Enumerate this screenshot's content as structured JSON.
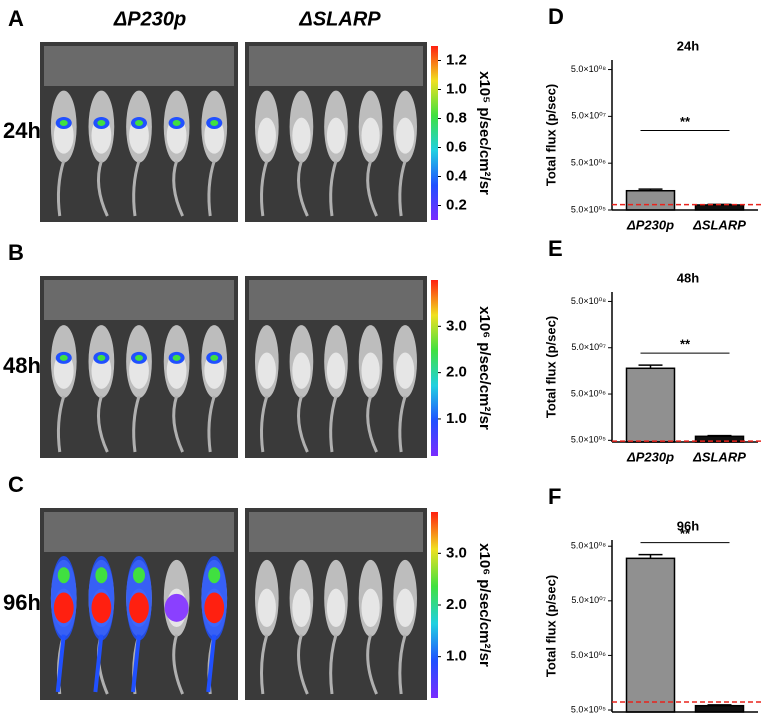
{
  "column_headers": [
    "ΔP230p",
    "ΔSLARP"
  ],
  "image_panels": [
    {
      "letter": "A",
      "time": "24h",
      "colorbar_label": "x10⁵ p/sec/cm²/sr",
      "colorbar_lim": [
        0.1,
        1.3
      ],
      "colorbar_ticks": [
        1.2,
        {
          "value": 1,
          "label": "1.0"
        },
        0.8,
        0.6,
        0.4,
        0.2
      ]
    },
    {
      "letter": "B",
      "time": "48h",
      "colorbar_label": "x10⁶ p/sec/cm²/sr",
      "colorbar_lim": [
        0.2,
        4.0
      ],
      "colorbar_ticks": [
        {
          "value": 3,
          "label": "3.0"
        },
        {
          "value": 2,
          "label": "2.0"
        },
        {
          "value": 1,
          "label": "1.0"
        }
      ]
    },
    {
      "letter": "C",
      "time": "96h",
      "colorbar_label": "x10⁶ p/sec/cm²/sr",
      "colorbar_lim": [
        0.2,
        3.8
      ],
      "colorbar_ticks": [
        {
          "value": 3,
          "label": "3.0"
        },
        {
          "value": 2,
          "label": "2.0"
        },
        {
          "value": 1,
          "label": "1.0"
        }
      ]
    }
  ],
  "chart_data": [
    {
      "type": "bar",
      "panel": "D",
      "title": "24h",
      "ylabel": "Total flux (p/sec)",
      "annotation": "**",
      "categories": [
        "ΔP230p",
        "ΔSLARP"
      ],
      "values": [
        1290000,
        640000
      ],
      "errors": [
        110000,
        20000
      ],
      "colors": [
        "#909090",
        "#111111"
      ],
      "threshold": 650000,
      "threshold_color": "#e8231c",
      "log_scale": true,
      "ylim": [
        500000,
        800000000
      ],
      "yticks": [
        {
          "value": 500000,
          "label": "5.0×10⁰⁵"
        },
        {
          "value": 5000000,
          "label": "5.0×10⁰⁶"
        },
        {
          "value": 50000000,
          "label": "5.0×10⁰⁷"
        },
        {
          "value": 500000000,
          "label": "5.0×10⁰⁸"
        }
      ]
    },
    {
      "type": "bar",
      "panel": "E",
      "title": "48h",
      "ylabel": "Total flux (p/sec)",
      "annotation": "**",
      "categories": [
        "ΔP230p",
        "ΔSLARP"
      ],
      "values": [
        18000000,
        610000
      ],
      "errors": [
        3000000,
        20000
      ],
      "colors": [
        "#909090",
        "#111111"
      ],
      "threshold": 480000,
      "threshold_color": "#e8231c",
      "log_scale": true,
      "ylim": [
        460000,
        800000000
      ],
      "yticks": [
        {
          "value": 500000,
          "label": "5.0×10⁰⁵"
        },
        {
          "value": 5000000,
          "label": "5.0×10⁰⁶"
        },
        {
          "value": 50000000,
          "label": "5.0×10⁰⁷"
        },
        {
          "value": 500000000,
          "label": "5.0×10⁰⁸"
        }
      ]
    },
    {
      "type": "bar",
      "panel": "F",
      "title": "96h",
      "ylabel": "Total flux (p/sec)",
      "annotation": "**",
      "categories": [
        "ΔP230p",
        "ΔSLARP"
      ],
      "values": [
        300000000,
        600000
      ],
      "errors": [
        50000000,
        20000
      ],
      "colors": [
        "#909090",
        "#111111"
      ],
      "threshold": 700000,
      "threshold_color": "#e8231c",
      "log_scale": true,
      "ylim": [
        460000,
        650000000
      ],
      "yticks": [
        {
          "value": 500000,
          "label": "5.0×10⁰⁵"
        },
        {
          "value": 5000000,
          "label": "5.0×10⁰⁶"
        },
        {
          "value": 50000000,
          "label": "5.0×10⁰⁷"
        },
        {
          "value": 500000000,
          "label": "5.0×10⁰⁸"
        }
      ]
    }
  ]
}
